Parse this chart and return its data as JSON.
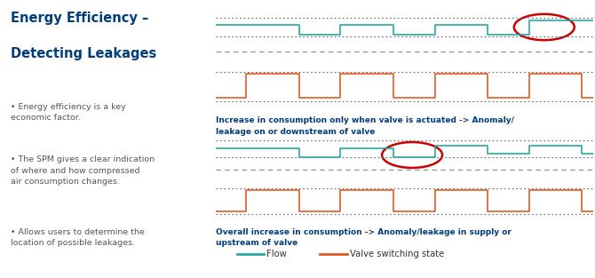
{
  "title_line1": "Energy Efficiency –",
  "title_line2": "Detecting Leakages",
  "title_color": "#003D7A",
  "bullets": [
    "Energy efficiency is a key\neconomic factor.",
    "The SPM gives a clear indication\nof where and how compressed\nair consumption changes.",
    "Allows users to determine the\nlocation of possible leakages."
  ],
  "bullet_color": "#555555",
  "chart1_caption": "Increase in consumption only when valve is actuated -> Anomaly/\nleakage on or downstream of valve",
  "chart2_caption": "Overall increase in consumption -> Anomaly/leakage in supply or\nupstream of valve",
  "caption_color": "#003D7A",
  "flow_color": "#2AA8A0",
  "valve_color": "#E05A20",
  "dashed_ref_color": "#999999",
  "dotted_bound_color": "#666666",
  "circle_color": "#CC0000",
  "bg_chart": "#E6E6E6",
  "bg_main": "#FFFFFF",
  "legend_flow_label": "Flow",
  "legend_valve_label": "Valve switching state"
}
